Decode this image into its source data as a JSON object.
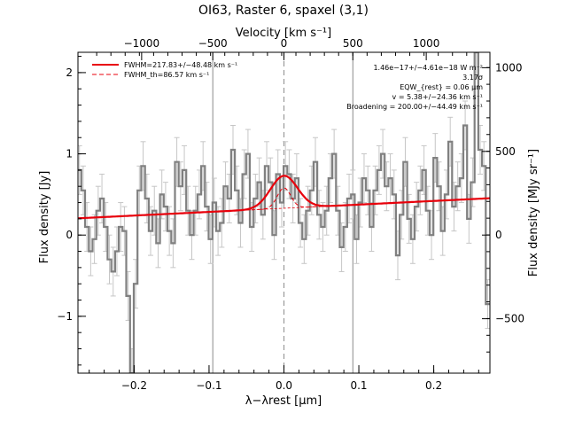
{
  "chart_data": {
    "type": "line",
    "title": "OI63, Raster 6, spaxel (3,1)",
    "xlabel": "λ−λrest [μm]",
    "ylabel_left": "Flux density [Jy]",
    "ylabel_right": "Flux density [MJy sr⁻¹]",
    "top_axis_label": "Velocity [km s⁻¹]",
    "xlim": [
      -0.275,
      0.275
    ],
    "ylim": [
      -1.7,
      2.25
    ],
    "x_ticks": [
      -0.2,
      -0.1,
      0.0,
      0.1,
      0.2
    ],
    "x_tick_labels": [
      "−0.2",
      "−0.1",
      "0.0",
      "0.1",
      "0.2"
    ],
    "y_ticks": [
      -1,
      0,
      1,
      2
    ],
    "y_tick_labels": [
      "−1",
      "0",
      "1",
      "2"
    ],
    "top_ticks_x": [
      -0.19,
      -0.095,
      0.0,
      0.092,
      0.19
    ],
    "top_tick_labels": [
      "−1000",
      "−500",
      "0",
      "500",
      "1000"
    ],
    "right_ticks_y": [
      -1.03,
      0.0,
      1.03,
      2.06
    ],
    "right_tick_labels": [
      "−500",
      "0",
      "500",
      "1000"
    ],
    "vertical_lines_x": [
      -0.095,
      0.092
    ],
    "rest_line_x": 0.0,
    "continuum": {
      "slope": 0.45,
      "intercept": 0.33
    },
    "gaussian": {
      "center": 0.0,
      "sigma": 0.018,
      "amplitude": 0.4
    },
    "theoretical_gaussian": {
      "center": 0.0,
      "sigma": 0.009,
      "amplitude": 0.25
    },
    "series": [
      {
        "name": "Observed spectrum",
        "x": [
          -0.273,
          -0.268,
          -0.263,
          -0.258,
          -0.253,
          -0.248,
          -0.243,
          -0.238,
          -0.233,
          -0.228,
          -0.223,
          -0.218,
          -0.213,
          -0.208,
          -0.203,
          -0.198,
          -0.193,
          -0.188,
          -0.183,
          -0.178,
          -0.173,
          -0.168,
          -0.163,
          -0.158,
          -0.153,
          -0.148,
          -0.143,
          -0.138,
          -0.133,
          -0.128,
          -0.123,
          -0.118,
          -0.113,
          -0.108,
          -0.103,
          -0.098,
          -0.093,
          -0.088,
          -0.083,
          -0.078,
          -0.073,
          -0.068,
          -0.063,
          -0.058,
          -0.053,
          -0.048,
          -0.043,
          -0.038,
          -0.033,
          -0.028,
          -0.023,
          -0.018,
          -0.013,
          -0.008,
          -0.003,
          0.002,
          0.007,
          0.012,
          0.017,
          0.022,
          0.027,
          0.032,
          0.037,
          0.042,
          0.047,
          0.052,
          0.057,
          0.062,
          0.067,
          0.072,
          0.077,
          0.082,
          0.087,
          0.092,
          0.097,
          0.102,
          0.107,
          0.112,
          0.117,
          0.122,
          0.127,
          0.132,
          0.137,
          0.142,
          0.147,
          0.152,
          0.157,
          0.162,
          0.167,
          0.172,
          0.177,
          0.182,
          0.187,
          0.192,
          0.197,
          0.202,
          0.207,
          0.212,
          0.217,
          0.222,
          0.227,
          0.232,
          0.237,
          0.242,
          0.247,
          0.252,
          0.257,
          0.262,
          0.267,
          0.272
        ],
        "y": [
          0.8,
          0.55,
          0.1,
          -0.2,
          -0.05,
          0.3,
          0.45,
          0.1,
          -0.3,
          -0.45,
          -0.2,
          0.1,
          0.05,
          -0.75,
          -1.7,
          -0.6,
          0.55,
          0.85,
          0.45,
          0.05,
          0.3,
          -0.1,
          0.5,
          0.35,
          0.05,
          -0.1,
          0.9,
          0.6,
          0.8,
          0.3,
          0.0,
          0.3,
          0.5,
          0.85,
          0.35,
          -0.05,
          0.4,
          0.05,
          0.15,
          0.6,
          0.45,
          1.05,
          0.55,
          0.15,
          0.75,
          1.0,
          0.1,
          0.45,
          0.65,
          0.25,
          0.85,
          0.65,
          0.0,
          0.75,
          0.4,
          0.85,
          0.75,
          0.45,
          0.7,
          0.15,
          -0.05,
          0.3,
          0.55,
          0.9,
          0.25,
          0.1,
          0.3,
          0.7,
          1.0,
          0.3,
          -0.15,
          0.1,
          0.45,
          0.5,
          -0.05,
          0.4,
          0.7,
          0.55,
          0.1,
          0.55,
          0.8,
          1.0,
          0.6,
          0.7,
          0.5,
          -0.25,
          0.25,
          0.9,
          0.2,
          -0.05,
          0.35,
          0.55,
          0.8,
          0.3,
          0.0,
          0.95,
          0.6,
          0.05,
          0.5,
          1.15,
          0.35,
          0.6,
          0.7,
          1.35,
          0.2,
          0.65,
          2.25,
          1.05,
          0.85,
          -0.85
        ],
        "error": 0.3,
        "color": "#808080"
      }
    ],
    "legend": [
      {
        "label": "FWHM=217.83+/−48.48 km s⁻¹",
        "style": "solid",
        "color": "#e8000b"
      },
      {
        "label": "FWHM_th=86.57 km s⁻¹",
        "style": "dashed",
        "color": "#e8000b"
      }
    ],
    "annotations": [
      "1.46e−17+/−4.61e−18 W m⁻²",
      "3.17σ",
      "EQW_{rest} = 0.06 μm",
      "v = 5.38+/−24.36 km s⁻¹",
      "Broadening = 200.00+/−44.49 km s⁻¹"
    ]
  }
}
